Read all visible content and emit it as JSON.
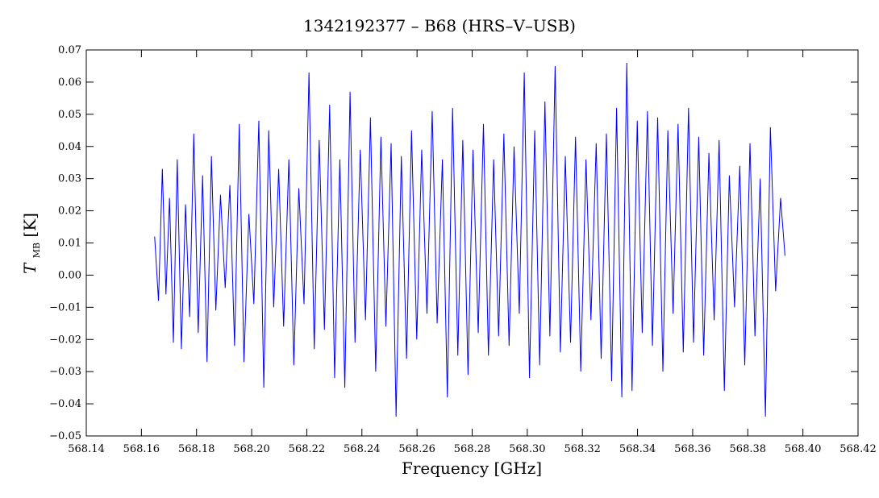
{
  "chart_data": {
    "type": "line",
    "title": "1342192377 – B68 (HRS–V–USB)",
    "xlabel": "Frequency [GHz]",
    "ylabel": {
      "symbol": "T",
      "subscript": "MB",
      "unit": "[K]"
    },
    "xlim": [
      568.14,
      568.42
    ],
    "ylim": [
      -0.05,
      0.07
    ],
    "xticks": [
      568.14,
      568.16,
      568.18,
      568.2,
      568.22,
      568.24,
      568.26,
      568.28,
      568.3,
      568.32,
      568.34,
      568.36,
      568.38,
      568.4,
      568.42
    ],
    "xtick_labels": [
      "568.14",
      "568.16",
      "568.18",
      "568.20",
      "568.22",
      "568.24",
      "568.26",
      "568.28",
      "568.30",
      "568.32",
      "568.34",
      "568.36",
      "568.38",
      "568.40",
      "568.42"
    ],
    "yticks": [
      -0.05,
      -0.04,
      -0.03,
      -0.02,
      -0.01,
      0.0,
      0.01,
      0.02,
      0.03,
      0.04,
      0.05,
      0.06,
      0.07
    ],
    "ytick_labels": [
      "−0.05",
      "−0.04",
      "−0.03",
      "−0.02",
      "−0.01",
      "0.00",
      "0.01",
      "0.02",
      "0.03",
      "0.04",
      "0.05",
      "0.06",
      "0.07"
    ],
    "grid": false,
    "series": [
      {
        "color": "#0000ff",
        "x": [
          568.1648,
          568.1662,
          568.1676,
          568.1689,
          568.1702,
          568.1716,
          568.173,
          568.1745,
          568.176,
          568.1775,
          568.179,
          568.1806,
          568.1822,
          568.1838,
          568.1854,
          568.187,
          568.1887,
          568.1904,
          568.1921,
          568.1938,
          568.1955,
          568.1972,
          568.199,
          568.2008,
          568.2026,
          568.2044,
          568.2062,
          568.208,
          568.2098,
          568.2116,
          568.2135,
          568.2153,
          568.2171,
          568.219,
          568.2208,
          568.2227,
          568.2245,
          568.2264,
          568.2283,
          568.2301,
          568.232,
          568.2338,
          568.2357,
          568.2375,
          568.2394,
          568.2413,
          568.2431,
          568.245,
          568.2469,
          568.2487,
          568.2506,
          568.2524,
          568.2543,
          568.2562,
          568.258,
          568.2599,
          568.2617,
          568.2636,
          568.2655,
          568.2673,
          568.2692,
          568.271,
          568.2729,
          568.2748,
          568.2766,
          568.2785,
          568.2803,
          568.2822,
          568.2841,
          568.2859,
          568.2878,
          568.2896,
          568.2915,
          568.2934,
          568.2952,
          568.2971,
          568.2989,
          568.3008,
          568.3027,
          568.3045,
          568.3064,
          568.3082,
          568.3101,
          568.312,
          568.3138,
          568.3157,
          568.3175,
          568.3194,
          568.3213,
          568.3231,
          568.325,
          568.3268,
          568.3287,
          568.3306,
          568.3324,
          568.3343,
          568.3361,
          568.338,
          568.3399,
          568.3417,
          568.3436,
          568.3454,
          568.3473,
          568.3492,
          568.351,
          568.3529,
          568.3547,
          568.3566,
          568.3585,
          568.3603,
          568.3622,
          568.364,
          568.3659,
          568.3678,
          568.3696,
          568.3715,
          568.3733,
          568.3752,
          568.3771,
          568.3789,
          568.3808,
          568.3826,
          568.3845,
          568.3864,
          568.3882,
          568.3901,
          568.3919,
          568.3935
        ],
        "y": [
          0.012,
          -0.008,
          0.033,
          -0.006,
          0.024,
          -0.021,
          0.036,
          -0.023,
          0.022,
          -0.013,
          0.044,
          -0.018,
          0.031,
          -0.027,
          0.037,
          -0.011,
          0.025,
          -0.004,
          0.028,
          -0.022,
          0.047,
          -0.027,
          0.019,
          -0.009,
          0.048,
          -0.035,
          0.045,
          -0.01,
          0.033,
          -0.016,
          0.036,
          -0.028,
          0.027,
          -0.009,
          0.063,
          -0.023,
          0.042,
          -0.017,
          0.053,
          -0.032,
          0.036,
          -0.035,
          0.057,
          -0.021,
          0.039,
          -0.014,
          0.049,
          -0.03,
          0.043,
          -0.016,
          0.041,
          -0.044,
          0.037,
          -0.026,
          0.045,
          -0.02,
          0.039,
          -0.012,
          0.051,
          -0.015,
          0.036,
          -0.038,
          0.052,
          -0.025,
          0.042,
          -0.031,
          0.039,
          -0.018,
          0.047,
          -0.025,
          0.036,
          -0.019,
          0.044,
          -0.022,
          0.04,
          -0.012,
          0.063,
          -0.032,
          0.045,
          -0.028,
          0.054,
          -0.019,
          0.065,
          -0.024,
          0.037,
          -0.021,
          0.043,
          -0.03,
          0.036,
          -0.014,
          0.041,
          -0.026,
          0.044,
          -0.033,
          0.052,
          -0.038,
          0.066,
          -0.036,
          0.048,
          -0.018,
          0.051,
          -0.022,
          0.049,
          -0.03,
          0.045,
          -0.012,
          0.047,
          -0.024,
          0.052,
          -0.021,
          0.043,
          -0.025,
          0.038,
          -0.014,
          0.042,
          -0.036,
          0.031,
          -0.01,
          0.034,
          -0.028,
          0.041,
          -0.019,
          0.03,
          -0.044,
          0.046,
          -0.005,
          0.024,
          0.006
        ]
      }
    ]
  }
}
